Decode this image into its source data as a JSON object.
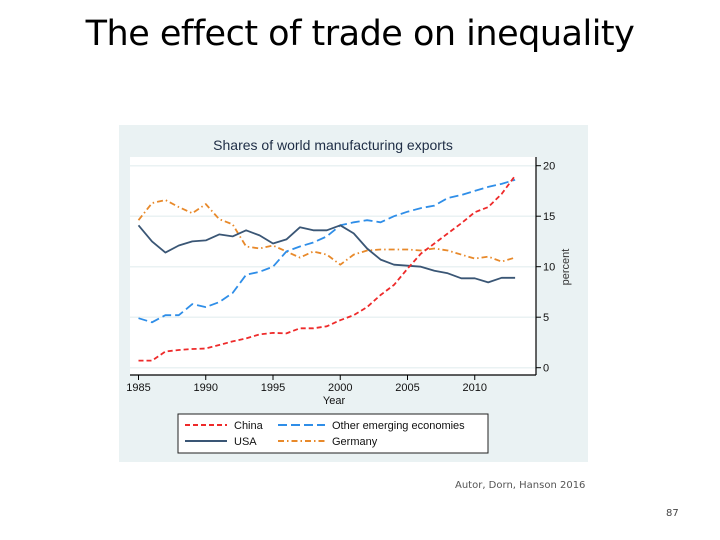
{
  "slide": {
    "title": "The effect of trade on inequality",
    "citation": "Autor, Dorn, Hanson 2016",
    "page_number": "87"
  },
  "chart_data": {
    "type": "line",
    "title": "Shares of world manufacturing exports",
    "xlabel": "Year",
    "ylabel": "percent",
    "xlim": [
      1985,
      2013
    ],
    "ylim": [
      0,
      20
    ],
    "x_ticks": [
      "1985",
      "1990",
      "1995",
      "2000",
      "2005",
      "2010"
    ],
    "y_ticks": [
      "0",
      "5",
      "10",
      "15",
      "20"
    ],
    "y_axis_side": "right",
    "grid": true,
    "legend_position": "bottom",
    "x": [
      1985,
      1986,
      1987,
      1988,
      1989,
      1990,
      1991,
      1992,
      1993,
      1994,
      1995,
      1996,
      1997,
      1998,
      1999,
      2000,
      2001,
      2002,
      2003,
      2004,
      2005,
      2006,
      2007,
      2008,
      2009,
      2010,
      2011,
      2012,
      2013
    ],
    "series": [
      {
        "name": "China",
        "color": "#ee2a2a",
        "style": "dash",
        "values": [
          0.7,
          0.7,
          1.6,
          1.75,
          1.85,
          1.9,
          2.25,
          2.6,
          2.9,
          3.3,
          3.45,
          3.4,
          3.9,
          3.9,
          4.1,
          4.7,
          5.2,
          6.0,
          7.2,
          8.2,
          9.8,
          11.3,
          12.3,
          13.3,
          14.3,
          15.4,
          15.9,
          17.2,
          19.0
        ]
      },
      {
        "name": "Other emerging economies",
        "color": "#2f8ee8",
        "style": "longdash",
        "values": [
          4.9,
          4.5,
          5.2,
          5.2,
          6.3,
          6.0,
          6.5,
          7.4,
          9.2,
          9.5,
          10.0,
          11.5,
          12.0,
          12.4,
          13.0,
          14.1,
          14.4,
          14.6,
          14.4,
          15.0,
          15.45,
          15.8,
          16.05,
          16.8,
          17.1,
          17.5,
          17.9,
          18.2,
          18.6
        ]
      },
      {
        "name": "USA",
        "color": "#3a5675",
        "style": "solid",
        "values": [
          14.1,
          12.5,
          11.4,
          12.1,
          12.5,
          12.6,
          13.2,
          13.0,
          13.6,
          13.1,
          12.3,
          12.7,
          13.9,
          13.6,
          13.6,
          14.1,
          13.3,
          11.8,
          10.7,
          10.2,
          10.1,
          10.0,
          9.6,
          9.35,
          8.85,
          8.85,
          8.45,
          8.9,
          8.9
        ]
      },
      {
        "name": "Germany",
        "color": "#e8892a",
        "style": "dashdot",
        "values": [
          14.6,
          16.3,
          16.6,
          15.9,
          15.3,
          16.2,
          14.7,
          14.2,
          12.0,
          11.8,
          12.1,
          11.5,
          10.9,
          11.5,
          11.2,
          10.2,
          11.2,
          11.6,
          11.7,
          11.7,
          11.7,
          11.6,
          11.8,
          11.6,
          11.2,
          10.8,
          11.0,
          10.5,
          10.9
        ]
      }
    ],
    "legend_order": [
      "China",
      "Other emerging economies",
      "USA",
      "Germany"
    ]
  }
}
